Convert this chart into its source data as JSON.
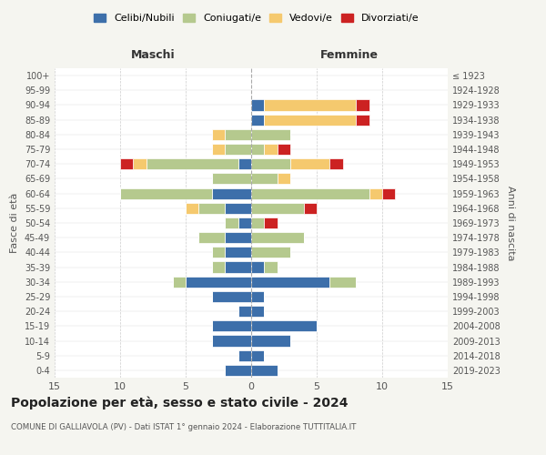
{
  "age_groups": [
    "100+",
    "95-99",
    "90-94",
    "85-89",
    "80-84",
    "75-79",
    "70-74",
    "65-69",
    "60-64",
    "55-59",
    "50-54",
    "45-49",
    "40-44",
    "35-39",
    "30-34",
    "25-29",
    "20-24",
    "15-19",
    "10-14",
    "5-9",
    "0-4"
  ],
  "birth_years": [
    "≤ 1923",
    "1924-1928",
    "1929-1933",
    "1934-1938",
    "1939-1943",
    "1944-1948",
    "1949-1953",
    "1954-1958",
    "1959-1963",
    "1964-1968",
    "1969-1973",
    "1974-1978",
    "1979-1983",
    "1984-1988",
    "1989-1993",
    "1994-1998",
    "1999-2003",
    "2004-2008",
    "2009-2013",
    "2014-2018",
    "2019-2023"
  ],
  "colors": {
    "celibi": "#3d6faa",
    "coniugati": "#b5c98e",
    "vedovi": "#f5c96e",
    "divorziati": "#cc2222"
  },
  "maschi": {
    "celibi": [
      0,
      0,
      0,
      0,
      0,
      0,
      1,
      0,
      3,
      2,
      1,
      2,
      2,
      2,
      5,
      3,
      1,
      3,
      3,
      1,
      2
    ],
    "coniugati": [
      0,
      0,
      0,
      0,
      2,
      2,
      7,
      3,
      7,
      2,
      1,
      2,
      1,
      1,
      1,
      0,
      0,
      0,
      0,
      0,
      0
    ],
    "vedovi": [
      0,
      0,
      0,
      0,
      1,
      1,
      1,
      0,
      0,
      1,
      0,
      0,
      0,
      0,
      0,
      0,
      0,
      0,
      0,
      0,
      0
    ],
    "divorziati": [
      0,
      0,
      0,
      0,
      0,
      0,
      1,
      0,
      0,
      0,
      0,
      0,
      0,
      0,
      0,
      0,
      0,
      0,
      0,
      0,
      0
    ]
  },
  "femmine": {
    "celibi": [
      0,
      0,
      1,
      1,
      0,
      0,
      0,
      0,
      0,
      0,
      0,
      0,
      0,
      1,
      6,
      1,
      1,
      5,
      3,
      1,
      2
    ],
    "coniugati": [
      0,
      0,
      0,
      0,
      3,
      1,
      3,
      2,
      9,
      4,
      1,
      4,
      3,
      1,
      2,
      0,
      0,
      0,
      0,
      0,
      0
    ],
    "vedovi": [
      0,
      0,
      7,
      7,
      0,
      1,
      3,
      1,
      1,
      0,
      0,
      0,
      0,
      0,
      0,
      0,
      0,
      0,
      0,
      0,
      0
    ],
    "divorziati": [
      0,
      0,
      1,
      1,
      0,
      1,
      1,
      0,
      1,
      1,
      1,
      0,
      0,
      0,
      0,
      0,
      0,
      0,
      0,
      0,
      0
    ]
  },
  "xlim": 15,
  "title": "Popolazione per età, sesso e stato civile - 2024",
  "subtitle": "COMUNE DI GALLIAVOLA (PV) - Dati ISTAT 1° gennaio 2024 - Elaborazione TUTTITALIA.IT",
  "ylabel_left": "Fasce di età",
  "ylabel_right": "Anni di nascita",
  "xlabel_left": "Maschi",
  "xlabel_right": "Femmine",
  "legend_labels": [
    "Celibi/Nubili",
    "Coniugati/e",
    "Vedovi/e",
    "Divorziati/e"
  ],
  "bg_color": "#f5f5f0",
  "bar_bg_color": "#ffffff"
}
